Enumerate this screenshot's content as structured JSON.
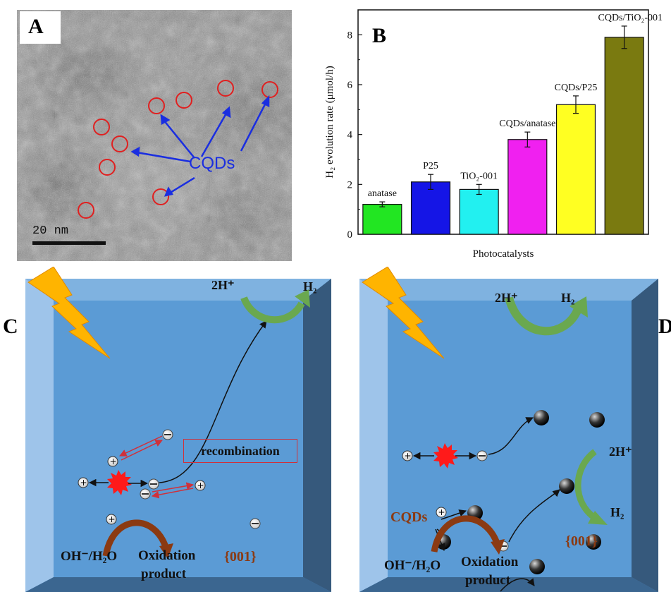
{
  "panel_labels": {
    "a": "A",
    "b": "B",
    "c": "C",
    "d": "D"
  },
  "tem": {
    "scale_text": "20 nm",
    "cqd_label": "CQDs"
  },
  "chart_data": {
    "type": "bar",
    "title": "",
    "xlabel": "Photocatalysts",
    "ylabel": "H₂ evolution rate (μmol/h)",
    "ylim": [
      0,
      9
    ],
    "yticks": [
      "0",
      "2",
      "4",
      "6",
      "8"
    ],
    "grid": false,
    "categories": [
      "anatase",
      "P25",
      "TiO₂-001",
      "CQDs/anatase",
      "CQDs/P25",
      "CQDs/TiO₂-001"
    ],
    "values": [
      1.2,
      2.1,
      1.8,
      3.8,
      5.2,
      7.9
    ],
    "errors": [
      0.1,
      0.3,
      0.2,
      0.3,
      0.35,
      0.45
    ],
    "colors": [
      "#22e622",
      "#1515e6",
      "#22f0f0",
      "#f020f0",
      "#ffff22",
      "#7a7a10"
    ]
  },
  "scheme_c": {
    "h_plus": "2H⁺",
    "h2": "H₂",
    "recombination": "recombination",
    "oh_h2o": "OH⁻/H₂O",
    "oxidation1": "Oxidation",
    "oxidation2": "product",
    "facet": "{001}"
  },
  "scheme_d": {
    "h_plus_top": "2H⁺",
    "h2_top": "H₂",
    "h_plus_right": "2H⁺",
    "h2_right": "H₂",
    "cqds": "CQDs",
    "oh_h2o": "OH⁻/H₂O",
    "oxidation1": "Oxidation",
    "oxidation2": "product",
    "facet": "{001}"
  },
  "colors": {
    "crystal_face": "#5b9bd5",
    "crystal_dark": "#3a5f82",
    "lightning": "#ffb400",
    "green_arrow": "#6aa84f",
    "brown_arrow": "#8b3a12"
  }
}
